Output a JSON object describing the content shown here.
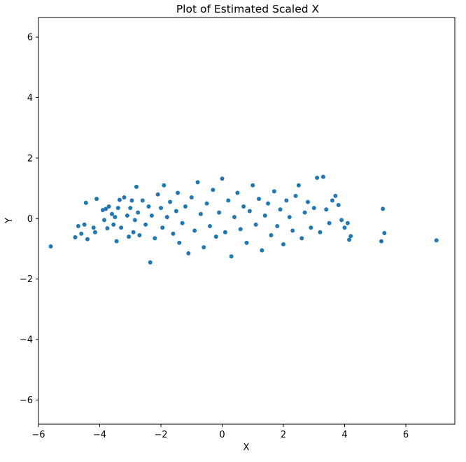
{
  "chart_data": {
    "type": "scatter",
    "title": "Plot of Estimated Scaled X",
    "xlabel": "X",
    "ylabel": "Y",
    "xlim": [
      -6.0,
      7.6
    ],
    "ylim": [
      -6.8,
      6.65
    ],
    "xticks": [
      -6,
      -4,
      -2,
      0,
      2,
      4,
      6
    ],
    "yticks": [
      -6,
      -4,
      -2,
      0,
      2,
      4,
      6
    ],
    "xtick_labels": [
      "−6",
      "−4",
      "−2",
      "0",
      "2",
      "4",
      "6"
    ],
    "ytick_labels": [
      "−6",
      "−4",
      "−2",
      "0",
      "2",
      "4",
      "6"
    ],
    "grid": false,
    "legend": "none",
    "marker_color": "#1f77b4",
    "series": [
      {
        "x": [
          -5.6,
          -4.8,
          -4.7,
          -4.6,
          -4.5,
          -4.45,
          -4.4,
          -4.2,
          -4.15,
          -4.1,
          -3.9,
          -3.85,
          -3.8,
          -3.75,
          -3.7,
          -3.6,
          -3.55,
          -3.5,
          -3.45,
          -3.4,
          -3.35,
          -3.3,
          -3.2,
          -3.1,
          -3.05,
          -3.0,
          -2.95,
          -2.9,
          -2.85,
          -2.8,
          -2.75,
          -2.7,
          -2.6,
          -2.5,
          -2.4,
          -2.35,
          -2.3,
          -2.2,
          -2.1,
          -2.0,
          -1.95,
          -1.9,
          -1.8,
          -1.7,
          -1.6,
          -1.5,
          -1.45,
          -1.4,
          -1.3,
          -1.2,
          -1.1,
          -1.0,
          -0.9,
          -0.8,
          -0.7,
          -0.6,
          -0.5,
          -0.4,
          -0.3,
          -0.2,
          -0.1,
          0.0,
          0.1,
          0.2,
          0.3,
          0.4,
          0.5,
          0.6,
          0.7,
          0.8,
          0.9,
          1.0,
          1.1,
          1.2,
          1.3,
          1.4,
          1.5,
          1.6,
          1.7,
          1.8,
          1.9,
          2.0,
          2.1,
          2.2,
          2.3,
          2.4,
          2.5,
          2.6,
          2.7,
          2.8,
          2.9,
          3.0,
          3.1,
          3.2,
          3.3,
          3.4,
          3.5,
          3.6,
          3.7,
          3.8,
          3.9,
          4.0,
          4.1,
          4.15,
          4.2,
          5.2,
          5.25,
          5.3,
          7.0
        ],
        "y": [
          -0.92,
          -0.62,
          -0.25,
          -0.5,
          -0.2,
          0.52,
          -0.68,
          -0.3,
          -0.45,
          0.65,
          0.28,
          -0.05,
          0.32,
          -0.32,
          0.4,
          0.15,
          -0.2,
          0.05,
          -0.75,
          0.35,
          0.62,
          -0.3,
          0.7,
          0.1,
          -0.6,
          0.35,
          0.6,
          -0.45,
          -0.05,
          1.05,
          0.2,
          -0.55,
          0.6,
          -0.2,
          0.4,
          -1.45,
          0.1,
          -0.65,
          0.8,
          0.35,
          -0.3,
          1.1,
          0.05,
          0.55,
          -0.5,
          0.25,
          0.85,
          -0.8,
          -0.15,
          0.4,
          -1.15,
          0.7,
          -0.4,
          1.2,
          0.15,
          -0.95,
          0.5,
          -0.25,
          0.95,
          -0.6,
          0.2,
          1.32,
          -0.45,
          0.6,
          -1.25,
          0.05,
          0.85,
          -0.35,
          0.4,
          -0.8,
          0.25,
          1.1,
          -0.2,
          0.65,
          -1.05,
          0.1,
          0.5,
          -0.55,
          0.9,
          -0.25,
          0.3,
          -0.85,
          0.6,
          0.05,
          -0.4,
          0.75,
          1.1,
          -0.65,
          0.2,
          0.55,
          -0.3,
          0.35,
          1.35,
          -0.45,
          1.38,
          0.3,
          -0.15,
          0.6,
          0.75,
          0.45,
          -0.05,
          -0.3,
          -0.15,
          -0.7,
          -0.58,
          -0.75,
          0.32,
          -0.48,
          -0.72
        ]
      }
    ]
  }
}
